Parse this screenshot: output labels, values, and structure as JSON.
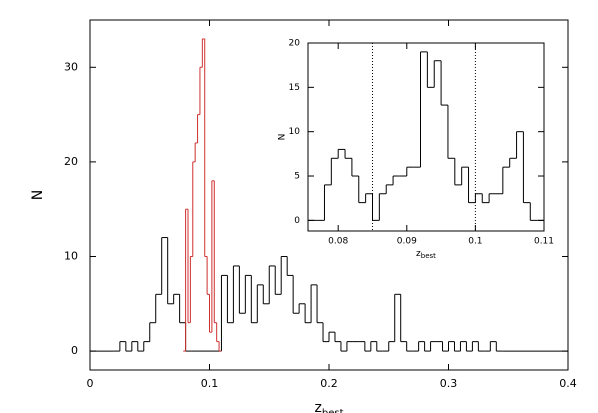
{
  "chart_data": [
    {
      "type": "histogram",
      "xlabel": "z",
      "xlabel_sub": "best",
      "ylabel": "N",
      "xlim": [
        0,
        0.4
      ],
      "ylim": [
        -2,
        35
      ],
      "xticks": [
        0,
        0.1,
        0.2,
        0.3,
        0.4
      ],
      "yticks": [
        0,
        10,
        20,
        30
      ],
      "series": [
        {
          "color": "#000000",
          "bins": [
            0.02,
            0.025,
            0.03,
            0.035,
            0.04,
            0.045,
            0.05,
            0.055,
            0.06,
            0.065,
            0.07,
            0.075,
            0.08,
            0.085,
            0.09,
            0.095,
            0.1,
            0.105,
            0.11,
            0.115,
            0.12,
            0.125,
            0.13,
            0.135,
            0.14,
            0.145,
            0.15,
            0.155,
            0.16,
            0.165,
            0.17,
            0.175,
            0.18,
            0.185,
            0.19,
            0.195,
            0.2,
            0.205,
            0.21,
            0.215,
            0.22,
            0.225,
            0.23,
            0.235,
            0.24,
            0.245,
            0.25,
            0.255,
            0.26,
            0.265,
            0.27,
            0.275,
            0.28,
            0.285,
            0.29,
            0.295,
            0.3,
            0.305,
            0.31,
            0.315,
            0.32,
            0.325,
            0.33,
            0.335,
            0.34,
            0.345
          ],
          "values": [
            0,
            1,
            0,
            1,
            0,
            1,
            3,
            6,
            12,
            5,
            6,
            3,
            0,
            0,
            0,
            0,
            0,
            0,
            8,
            3,
            9,
            4,
            8,
            3,
            7,
            5,
            9,
            6,
            10,
            8,
            4,
            5,
            3,
            7,
            3,
            1,
            2,
            1,
            0,
            1,
            1,
            1,
            0,
            1,
            0,
            0,
            1,
            6,
            1,
            0,
            0,
            1,
            0,
            1,
            1,
            0,
            1,
            0,
            1,
            0,
            1,
            0,
            0,
            1,
            0
          ]
        },
        {
          "color": "#d03030",
          "bins": [
            0.078,
            0.08,
            0.082,
            0.084,
            0.086,
            0.088,
            0.09,
            0.092,
            0.094,
            0.096,
            0.098,
            0.1,
            0.102,
            0.104,
            0.106,
            0.108,
            0.11
          ],
          "values": [
            0,
            15,
            3,
            10,
            20,
            22,
            25,
            30,
            33,
            10,
            6,
            2,
            18,
            3,
            1,
            0
          ]
        }
      ]
    },
    {
      "type": "histogram",
      "xlabel": "z",
      "xlabel_sub": "best",
      "ylabel": "N",
      "xlim": [
        0.0756,
        0.11
      ],
      "ylim": [
        -1.2,
        20
      ],
      "xticks": [
        0.08,
        0.09,
        0.1,
        0.11
      ],
      "yticks": [
        0,
        5,
        10,
        15,
        20
      ],
      "vlines": [
        0.085,
        0.1
      ],
      "series": [
        {
          "color": "#000000",
          "bins": [
            0.077,
            0.078,
            0.079,
            0.08,
            0.081,
            0.082,
            0.083,
            0.084,
            0.085,
            0.086,
            0.087,
            0.088,
            0.089,
            0.09,
            0.091,
            0.092,
            0.093,
            0.094,
            0.095,
            0.096,
            0.097,
            0.098,
            0.099,
            0.1,
            0.101,
            0.102,
            0.103,
            0.104,
            0.105,
            0.106,
            0.107,
            0.108,
            0.109,
            0.11
          ],
          "values": [
            0,
            4,
            7,
            8,
            7,
            5,
            2,
            3,
            0,
            3,
            4,
            5,
            5,
            6,
            6,
            19,
            15,
            18,
            13,
            7,
            4,
            6,
            2,
            3,
            2,
            3,
            3,
            6,
            7,
            10,
            2,
            0,
            0
          ]
        }
      ]
    }
  ]
}
